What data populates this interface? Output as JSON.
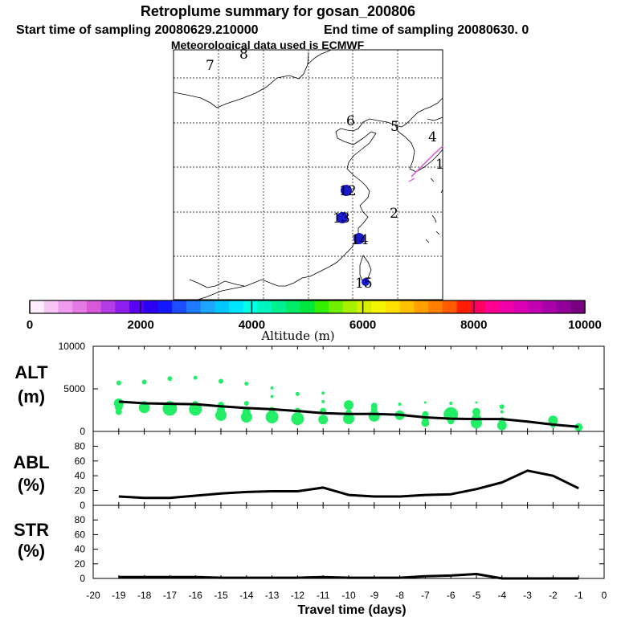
{
  "header": {
    "title": "Retroplume summary for gosan_200806",
    "start_time": "Start time of sampling 20080629.210000",
    "end_time": "End time of sampling 20080630.     0",
    "met_data": "Meteorological data used is ECMWF"
  },
  "map": {
    "labels": [
      {
        "text": "7",
        "position": "top-left"
      },
      {
        "text": "8",
        "position": "top"
      },
      {
        "text": "6",
        "position": "north Korea bay"
      },
      {
        "text": "5",
        "position": "north Korea"
      },
      {
        "text": "4",
        "position": "east coast"
      },
      {
        "text": "1",
        "position": "east"
      },
      {
        "text": "12",
        "position": "yellow sea"
      },
      {
        "text": "2",
        "position": "east china sea"
      },
      {
        "text": "13",
        "position": "shanghai"
      },
      {
        "text": "14",
        "position": "south coast"
      },
      {
        "text": "15",
        "position": "taiwan strait"
      }
    ]
  },
  "colorbar": {
    "ticks": [
      "0",
      "2000",
      "4000",
      "6000",
      "8000",
      "10000"
    ],
    "label": "Altitude (m)",
    "colors": [
      "#ffeeff",
      "#f7c6f7",
      "#ef9cef",
      "#e57ae5",
      "#d957d9",
      "#b33ce6",
      "#8c1ff0",
      "#5a00f5",
      "#2b00f0",
      "#1418ff",
      "#1c4cff",
      "#1e7aff",
      "#1ea6ff",
      "#00c8ff",
      "#00e6ff",
      "#00ffe6",
      "#00f5c0",
      "#00f094",
      "#00eb68",
      "#00e63c",
      "#34f000",
      "#70f000",
      "#a6f000",
      "#d6f000",
      "#f5f500",
      "#ffe000",
      "#ffc000",
      "#ffa000",
      "#ff8000",
      "#ff5a00",
      "#ff1e00",
      "#ff0060",
      "#ff0090",
      "#f000a8",
      "#dc00b4",
      "#c300b4",
      "#aa00aa",
      "#92009a",
      "#780080"
    ]
  },
  "chart_data": [
    {
      "type": "scatter",
      "id": "alt",
      "ylabel": "ALT",
      "yunit": "(m)",
      "ylim": [
        0,
        10000
      ],
      "yticks": [
        "0",
        "5000",
        "10000"
      ],
      "x": [
        -19,
        -18,
        -17,
        -16,
        -15,
        -14,
        -13,
        -12,
        -11,
        -10,
        -9,
        -8,
        -7,
        -6,
        -5,
        -4,
        -3,
        -2,
        -1
      ],
      "mean_line": [
        3500,
        3300,
        3250,
        3200,
        2950,
        2750,
        2600,
        2400,
        2150,
        2050,
        2050,
        1950,
        1650,
        1500,
        1450,
        1450,
        1150,
        800,
        550
      ],
      "cluster_points": [
        {
          "x": -19,
          "y": 5700,
          "s": 3
        },
        {
          "x": -19,
          "y": 3300,
          "s": 6
        },
        {
          "x": -19,
          "y": 2900,
          "s": 5
        },
        {
          "x": -19,
          "y": 2300,
          "s": 4
        },
        {
          "x": -18,
          "y": 5800,
          "s": 3
        },
        {
          "x": -18,
          "y": 3200,
          "s": 4
        },
        {
          "x": -18,
          "y": 2800,
          "s": 7
        },
        {
          "x": -17,
          "y": 6200,
          "s": 3
        },
        {
          "x": -17,
          "y": 3300,
          "s": 3
        },
        {
          "x": -17,
          "y": 2700,
          "s": 9
        },
        {
          "x": -16,
          "y": 6300,
          "s": 2.5
        },
        {
          "x": -16,
          "y": 3200,
          "s": 4
        },
        {
          "x": -16,
          "y": 2600,
          "s": 8
        },
        {
          "x": -15,
          "y": 5900,
          "s": 3
        },
        {
          "x": -15,
          "y": 3100,
          "s": 4
        },
        {
          "x": -15,
          "y": 2500,
          "s": 5
        },
        {
          "x": -15,
          "y": 1900,
          "s": 7
        },
        {
          "x": -14,
          "y": 5600,
          "s": 2.5
        },
        {
          "x": -14,
          "y": 3300,
          "s": 3
        },
        {
          "x": -14,
          "y": 2300,
          "s": 5
        },
        {
          "x": -14,
          "y": 1700,
          "s": 7
        },
        {
          "x": -13,
          "y": 5100,
          "s": 2
        },
        {
          "x": -13,
          "y": 4100,
          "s": 2
        },
        {
          "x": -13,
          "y": 2500,
          "s": 4
        },
        {
          "x": -13,
          "y": 1700,
          "s": 8
        },
        {
          "x": -12,
          "y": 4400,
          "s": 2.5
        },
        {
          "x": -12,
          "y": 2400,
          "s": 4
        },
        {
          "x": -12,
          "y": 1500,
          "s": 8
        },
        {
          "x": -11,
          "y": 4500,
          "s": 2
        },
        {
          "x": -11,
          "y": 3500,
          "s": 2
        },
        {
          "x": -11,
          "y": 2400,
          "s": 4
        },
        {
          "x": -11,
          "y": 1400,
          "s": 6
        },
        {
          "x": -10,
          "y": 3100,
          "s": 6
        },
        {
          "x": -10,
          "y": 2200,
          "s": 4
        },
        {
          "x": -10,
          "y": 1500,
          "s": 7
        },
        {
          "x": -9,
          "y": 3000,
          "s": 4
        },
        {
          "x": -9,
          "y": 2600,
          "s": 4
        },
        {
          "x": -9,
          "y": 1800,
          "s": 7
        },
        {
          "x": -8,
          "y": 3200,
          "s": 2
        },
        {
          "x": -8,
          "y": 1900,
          "s": 6
        },
        {
          "x": -7,
          "y": 3400,
          "s": 1.5
        },
        {
          "x": -7,
          "y": 2000,
          "s": 4
        },
        {
          "x": -7,
          "y": 1500,
          "s": 4
        },
        {
          "x": -7,
          "y": 1000,
          "s": 5
        },
        {
          "x": -6,
          "y": 3300,
          "s": 2
        },
        {
          "x": -6,
          "y": 2000,
          "s": 9
        },
        {
          "x": -6,
          "y": 1200,
          "s": 4
        },
        {
          "x": -5,
          "y": 3400,
          "s": 1.5
        },
        {
          "x": -5,
          "y": 2300,
          "s": 5
        },
        {
          "x": -5,
          "y": 1500,
          "s": 6
        },
        {
          "x": -5,
          "y": 1000,
          "s": 7
        },
        {
          "x": -4,
          "y": 2900,
          "s": 3
        },
        {
          "x": -4,
          "y": 2300,
          "s": 2
        },
        {
          "x": -4,
          "y": 1300,
          "s": 4
        },
        {
          "x": -4,
          "y": 700,
          "s": 6
        },
        {
          "x": -2,
          "y": 1300,
          "s": 6
        },
        {
          "x": -2,
          "y": 700,
          "s": 3
        },
        {
          "x": -1,
          "y": 500,
          "s": 5
        }
      ]
    },
    {
      "type": "line",
      "id": "abl",
      "ylabel": "ABL",
      "yunit": "(%)",
      "ylim": [
        0,
        100
      ],
      "yticks": [
        "0",
        "20",
        "40",
        "60",
        "80"
      ],
      "x": [
        -19,
        -18,
        -17,
        -16,
        -15,
        -14,
        -13,
        -12,
        -11,
        -10,
        -9,
        -8,
        -7,
        -6,
        -5,
        -4,
        -3,
        -2,
        -1
      ],
      "values": [
        12,
        10,
        10,
        13,
        16,
        18,
        19,
        19,
        24,
        14,
        12,
        12,
        14,
        15,
        22,
        31,
        47,
        40,
        23
      ]
    },
    {
      "type": "line",
      "id": "str",
      "ylabel": "STR",
      "yunit": "(%)",
      "ylim": [
        0,
        100
      ],
      "yticks": [
        "0",
        "20",
        "40",
        "60",
        "80"
      ],
      "x": [
        -19,
        -18,
        -17,
        -16,
        -15,
        -14,
        -13,
        -12,
        -11,
        -10,
        -9,
        -8,
        -7,
        -6,
        -5,
        -4,
        -3,
        -2,
        -1
      ],
      "values": [
        2,
        2,
        2,
        2,
        1,
        1,
        1,
        1,
        2,
        1,
        1,
        1,
        3,
        4,
        6,
        0,
        0,
        0,
        0
      ]
    }
  ],
  "xaxis": {
    "ticks": [
      "-20",
      "-19",
      "-18",
      "-17",
      "-16",
      "-15",
      "-14",
      "-13",
      "-12",
      "-11",
      "-10",
      "-9",
      "-8",
      "-7",
      "-6",
      "-5",
      "-4",
      "-3",
      "-2",
      "-1",
      "0"
    ],
    "label": "Travel time (days)"
  },
  "colors": {
    "points": "#22ee66",
    "line": "#000000",
    "map_marker": "#1a1acc",
    "plume": "#dd66dd"
  }
}
